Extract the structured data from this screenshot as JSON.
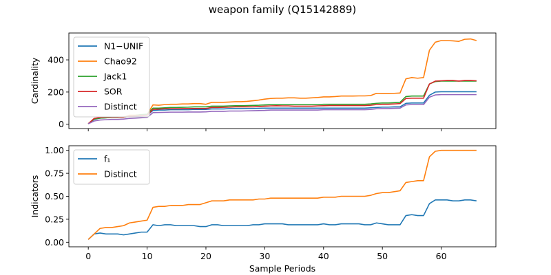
{
  "chart_data": {
    "title": "weapon family (Q15142889)",
    "xlabel": "Sample Periods",
    "xlim": [
      -3.3,
      69.3
    ],
    "xticks": [
      0,
      10,
      20,
      30,
      40,
      50,
      60
    ],
    "legend_placement": "upper-left",
    "grid": false,
    "panels": [
      {
        "type": "line",
        "ylabel": "Cardinality",
        "ylim": [
          -27,
          567
        ],
        "yticks": [
          0,
          200,
          400
        ],
        "series": [
          {
            "name": "N1−UNIF",
            "color": "#1f77b4",
            "values": [
              3,
              30,
              38,
              40,
              42,
              42,
              45,
              48,
              50,
              52,
              55,
              85,
              88,
              88,
              90,
              90,
              90,
              90,
              92,
              92,
              92,
              95,
              95,
              95,
              97,
              97,
              97,
              98,
              98,
              99,
              100,
              100,
              100,
              100,
              100,
              100,
              100,
              100,
              100,
              100,
              100,
              100,
              100,
              100,
              100,
              100,
              100,
              100,
              102,
              104,
              106,
              106,
              108,
              108,
              130,
              132,
              132,
              132,
              180,
              200,
              202,
              202,
              202,
              202,
              202,
              202,
              202
            ]
          },
          {
            "name": "Chao92",
            "color": "#ff7f0e",
            "values": [
              3,
              34,
              40,
              42,
              44,
              44,
              44,
              56,
              56,
              58,
              60,
              120,
              118,
              122,
              124,
              124,
              126,
              126,
              128,
              128,
              124,
              136,
              136,
              136,
              138,
              140,
              140,
              142,
              146,
              150,
              156,
              160,
              162,
              162,
              164,
              164,
              162,
              162,
              164,
              166,
              170,
              170,
              172,
              175,
              175,
              175,
              176,
              176,
              178,
              192,
              190,
              190,
              192,
              194,
              282,
              290,
              286,
              290,
              460,
              510,
              520,
              520,
              518,
              515,
              528,
              530,
              520
            ]
          },
          {
            "name": "Jack1",
            "color": "#2ca02c",
            "values": [
              3,
              32,
              38,
              40,
              42,
              42,
              44,
              52,
              55,
              60,
              62,
              100,
              100,
              102,
              104,
              104,
              105,
              106,
              108,
              108,
              108,
              112,
              112,
              112,
              114,
              115,
              115,
              116,
              117,
              118,
              120,
              122,
              122,
              122,
              122,
              122,
              122,
              122,
              122,
              122,
              124,
              124,
              124,
              124,
              124,
              124,
              124,
              124,
              126,
              130,
              132,
              132,
              134,
              136,
              172,
              175,
              175,
              175,
              250,
              265,
              268,
              268,
              268,
              268,
              268,
              268,
              268
            ]
          },
          {
            "name": "SOR",
            "color": "#d62728",
            "values": [
              3,
              36,
              42,
              44,
              44,
              44,
              44,
              50,
              52,
              54,
              56,
              92,
              94,
              96,
              96,
              96,
              97,
              98,
              98,
              98,
              98,
              104,
              104,
              105,
              106,
              108,
              108,
              108,
              108,
              110,
              112,
              114,
              115,
              114,
              114,
              112,
              112,
              112,
              112,
              114,
              115,
              116,
              116,
              116,
              116,
              116,
              116,
              116,
              118,
              122,
              124,
              124,
              126,
              128,
              160,
              162,
              162,
              162,
              250,
              268,
              270,
              272,
              272,
              268,
              272,
              272,
              270
            ]
          },
          {
            "name": "Distinct",
            "color": "#9467bd",
            "values": [
              3,
              20,
              26,
              28,
              30,
              30,
              32,
              36,
              38,
              40,
              42,
              72,
              73,
              74,
              75,
              75,
              75,
              76,
              76,
              76,
              77,
              80,
              80,
              80,
              82,
              82,
              82,
              83,
              84,
              85,
              86,
              88,
              88,
              88,
              88,
              88,
              88,
              88,
              88,
              88,
              90,
              90,
              90,
              90,
              90,
              90,
              90,
              90,
              92,
              96,
              97,
              97,
              99,
              100,
              120,
              122,
              122,
              122,
              168,
              182,
              184,
              184,
              184,
              184,
              184,
              184,
              184
            ]
          }
        ]
      },
      {
        "type": "line",
        "ylabel": "Indicators",
        "ylim": [
          -0.05,
          1.05
        ],
        "yticks": [
          0.0,
          0.25,
          0.5,
          0.75,
          1.0
        ],
        "ytick_labels": [
          "0.00",
          "0.25",
          "0.50",
          "0.75",
          "1.00"
        ],
        "series": [
          {
            "name": "f₁",
            "color": "#1f77b4",
            "values": [
              0.03,
              0.09,
              0.1,
              0.09,
              0.09,
              0.09,
              0.08,
              0.09,
              0.1,
              0.11,
              0.11,
              0.19,
              0.18,
              0.19,
              0.19,
              0.18,
              0.18,
              0.18,
              0.18,
              0.17,
              0.17,
              0.19,
              0.19,
              0.18,
              0.18,
              0.18,
              0.18,
              0.18,
              0.19,
              0.19,
              0.2,
              0.2,
              0.2,
              0.2,
              0.19,
              0.19,
              0.19,
              0.19,
              0.19,
              0.19,
              0.2,
              0.19,
              0.19,
              0.2,
              0.2,
              0.2,
              0.2,
              0.19,
              0.19,
              0.21,
              0.2,
              0.19,
              0.19,
              0.19,
              0.29,
              0.3,
              0.29,
              0.29,
              0.42,
              0.46,
              0.46,
              0.46,
              0.45,
              0.45,
              0.46,
              0.46,
              0.45
            ]
          },
          {
            "name": "Distinct",
            "color": "#ff7f0e",
            "values": [
              0.03,
              0.09,
              0.15,
              0.16,
              0.16,
              0.17,
              0.18,
              0.21,
              0.22,
              0.23,
              0.24,
              0.38,
              0.39,
              0.39,
              0.4,
              0.4,
              0.4,
              0.41,
              0.41,
              0.41,
              0.43,
              0.45,
              0.45,
              0.45,
              0.46,
              0.46,
              0.46,
              0.46,
              0.46,
              0.47,
              0.47,
              0.48,
              0.48,
              0.48,
              0.48,
              0.48,
              0.48,
              0.48,
              0.48,
              0.48,
              0.49,
              0.49,
              0.49,
              0.5,
              0.5,
              0.5,
              0.5,
              0.5,
              0.51,
              0.53,
              0.54,
              0.54,
              0.55,
              0.56,
              0.65,
              0.66,
              0.67,
              0.67,
              0.93,
              0.99,
              1.0,
              1.0,
              1.0,
              1.0,
              1.0,
              1.0,
              1.0
            ]
          }
        ]
      }
    ]
  }
}
